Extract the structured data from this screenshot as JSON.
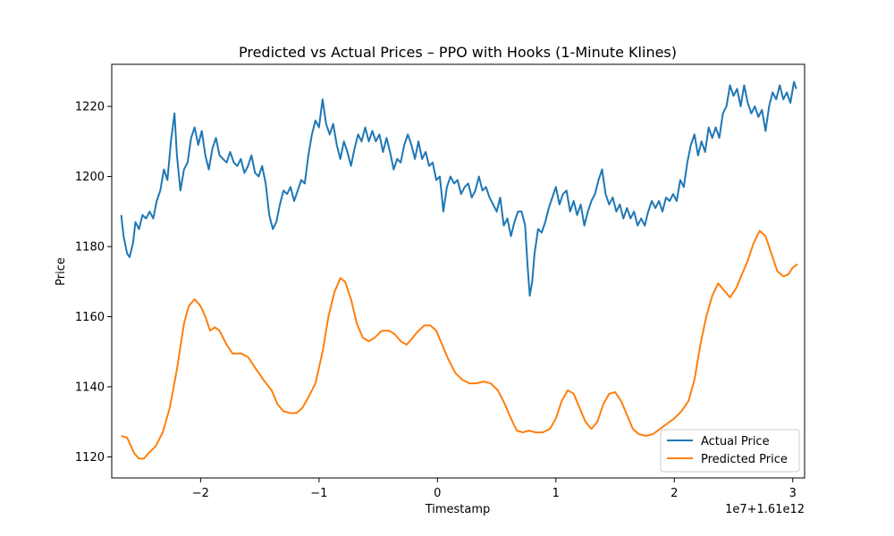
{
  "chart_data": {
    "type": "line",
    "title": "Predicted vs Actual Prices – PPO with Hooks (1-Minute Klines)",
    "xlabel": "Timestamp",
    "ylabel": "Price",
    "x_offset_label": "1e7+1.61e12",
    "xlim": [
      -2.75,
      3.1
    ],
    "ylim": [
      1114,
      1232
    ],
    "x_ticks": [
      {
        "value": -2,
        "label": "−2"
      },
      {
        "value": -1,
        "label": "−1"
      },
      {
        "value": 0,
        "label": "0"
      },
      {
        "value": 1,
        "label": "1"
      },
      {
        "value": 2,
        "label": "2"
      },
      {
        "value": 3,
        "label": "3"
      }
    ],
    "y_ticks": [
      {
        "value": 1120,
        "label": "1120"
      },
      {
        "value": 1140,
        "label": "1140"
      },
      {
        "value": 1160,
        "label": "1160"
      },
      {
        "value": 1180,
        "label": "1180"
      },
      {
        "value": 1200,
        "label": "1200"
      },
      {
        "value": 1220,
        "label": "1220"
      }
    ],
    "grid": false,
    "legend_position": "lower-right",
    "series": [
      {
        "name": "Actual Price",
        "color": "#1f77b4",
        "points": [
          [
            -2.67,
            1189
          ],
          [
            -2.65,
            1183
          ],
          [
            -2.62,
            1178
          ],
          [
            -2.6,
            1177
          ],
          [
            -2.57,
            1181
          ],
          [
            -2.55,
            1187
          ],
          [
            -2.52,
            1185
          ],
          [
            -2.49,
            1189
          ],
          [
            -2.46,
            1188
          ],
          [
            -2.43,
            1190
          ],
          [
            -2.4,
            1188
          ],
          [
            -2.37,
            1193
          ],
          [
            -2.34,
            1196
          ],
          [
            -2.31,
            1202
          ],
          [
            -2.28,
            1199
          ],
          [
            -2.25,
            1210
          ],
          [
            -2.22,
            1218
          ],
          [
            -2.2,
            1206
          ],
          [
            -2.17,
            1196
          ],
          [
            -2.14,
            1202
          ],
          [
            -2.11,
            1204
          ],
          [
            -2.08,
            1211
          ],
          [
            -2.05,
            1214
          ],
          [
            -2.02,
            1209
          ],
          [
            -1.99,
            1213
          ],
          [
            -1.96,
            1206
          ],
          [
            -1.93,
            1202
          ],
          [
            -1.9,
            1208
          ],
          [
            -1.87,
            1211
          ],
          [
            -1.84,
            1206
          ],
          [
            -1.81,
            1205
          ],
          [
            -1.78,
            1204
          ],
          [
            -1.75,
            1207
          ],
          [
            -1.72,
            1204
          ],
          [
            -1.69,
            1203
          ],
          [
            -1.66,
            1205
          ],
          [
            -1.63,
            1201
          ],
          [
            -1.6,
            1203
          ],
          [
            -1.57,
            1206
          ],
          [
            -1.54,
            1201
          ],
          [
            -1.51,
            1200
          ],
          [
            -1.48,
            1203
          ],
          [
            -1.45,
            1198
          ],
          [
            -1.42,
            1189
          ],
          [
            -1.39,
            1185
          ],
          [
            -1.36,
            1187
          ],
          [
            -1.33,
            1192
          ],
          [
            -1.3,
            1196
          ],
          [
            -1.27,
            1195
          ],
          [
            -1.24,
            1197
          ],
          [
            -1.21,
            1193
          ],
          [
            -1.18,
            1196
          ],
          [
            -1.15,
            1199
          ],
          [
            -1.12,
            1198
          ],
          [
            -1.09,
            1206
          ],
          [
            -1.06,
            1212
          ],
          [
            -1.03,
            1216
          ],
          [
            -1.0,
            1214
          ],
          [
            -0.97,
            1222
          ],
          [
            -0.94,
            1215
          ],
          [
            -0.91,
            1212
          ],
          [
            -0.88,
            1215
          ],
          [
            -0.85,
            1209
          ],
          [
            -0.82,
            1205
          ],
          [
            -0.79,
            1210
          ],
          [
            -0.76,
            1207
          ],
          [
            -0.73,
            1203
          ],
          [
            -0.7,
            1208
          ],
          [
            -0.67,
            1212
          ],
          [
            -0.64,
            1210
          ],
          [
            -0.61,
            1214
          ],
          [
            -0.58,
            1210
          ],
          [
            -0.55,
            1213
          ],
          [
            -0.52,
            1210
          ],
          [
            -0.49,
            1212
          ],
          [
            -0.46,
            1207
          ],
          [
            -0.43,
            1211
          ],
          [
            -0.4,
            1207
          ],
          [
            -0.37,
            1202
          ],
          [
            -0.34,
            1205
          ],
          [
            -0.31,
            1204
          ],
          [
            -0.28,
            1209
          ],
          [
            -0.25,
            1212
          ],
          [
            -0.22,
            1209
          ],
          [
            -0.19,
            1205
          ],
          [
            -0.16,
            1210
          ],
          [
            -0.13,
            1205
          ],
          [
            -0.1,
            1207
          ],
          [
            -0.07,
            1203
          ],
          [
            -0.04,
            1204
          ],
          [
            -0.01,
            1199
          ],
          [
            0.02,
            1200
          ],
          [
            0.05,
            1190
          ],
          [
            0.08,
            1197
          ],
          [
            0.11,
            1200
          ],
          [
            0.14,
            1198
          ],
          [
            0.17,
            1199
          ],
          [
            0.2,
            1195
          ],
          [
            0.23,
            1197
          ],
          [
            0.26,
            1198
          ],
          [
            0.29,
            1194
          ],
          [
            0.32,
            1196
          ],
          [
            0.35,
            1200
          ],
          [
            0.38,
            1196
          ],
          [
            0.41,
            1197
          ],
          [
            0.44,
            1194
          ],
          [
            0.47,
            1192
          ],
          [
            0.5,
            1190
          ],
          [
            0.53,
            1194
          ],
          [
            0.56,
            1186
          ],
          [
            0.59,
            1188
          ],
          [
            0.62,
            1183
          ],
          [
            0.65,
            1187
          ],
          [
            0.68,
            1190
          ],
          [
            0.71,
            1190
          ],
          [
            0.74,
            1186
          ],
          [
            0.76,
            1175
          ],
          [
            0.78,
            1166
          ],
          [
            0.8,
            1170
          ],
          [
            0.82,
            1178
          ],
          [
            0.85,
            1185
          ],
          [
            0.88,
            1184
          ],
          [
            0.91,
            1187
          ],
          [
            0.94,
            1191
          ],
          [
            0.97,
            1194
          ],
          [
            1.0,
            1197
          ],
          [
            1.03,
            1192
          ],
          [
            1.06,
            1195
          ],
          [
            1.09,
            1196
          ],
          [
            1.12,
            1190
          ],
          [
            1.15,
            1193
          ],
          [
            1.18,
            1189
          ],
          [
            1.21,
            1192
          ],
          [
            1.24,
            1186
          ],
          [
            1.27,
            1190
          ],
          [
            1.3,
            1193
          ],
          [
            1.33,
            1195
          ],
          [
            1.36,
            1199
          ],
          [
            1.39,
            1202
          ],
          [
            1.42,
            1195
          ],
          [
            1.45,
            1192
          ],
          [
            1.48,
            1194
          ],
          [
            1.51,
            1190
          ],
          [
            1.54,
            1192
          ],
          [
            1.57,
            1188
          ],
          [
            1.6,
            1191
          ],
          [
            1.63,
            1188
          ],
          [
            1.66,
            1190
          ],
          [
            1.69,
            1186
          ],
          [
            1.72,
            1188
          ],
          [
            1.75,
            1186
          ],
          [
            1.78,
            1190
          ],
          [
            1.81,
            1193
          ],
          [
            1.84,
            1191
          ],
          [
            1.87,
            1193
          ],
          [
            1.9,
            1190
          ],
          [
            1.93,
            1194
          ],
          [
            1.96,
            1193
          ],
          [
            1.99,
            1195
          ],
          [
            2.02,
            1193
          ],
          [
            2.05,
            1199
          ],
          [
            2.08,
            1197
          ],
          [
            2.11,
            1204
          ],
          [
            2.14,
            1209
          ],
          [
            2.17,
            1212
          ],
          [
            2.2,
            1206
          ],
          [
            2.23,
            1210
          ],
          [
            2.26,
            1207
          ],
          [
            2.29,
            1214
          ],
          [
            2.32,
            1211
          ],
          [
            2.35,
            1214
          ],
          [
            2.38,
            1211
          ],
          [
            2.41,
            1218
          ],
          [
            2.44,
            1220
          ],
          [
            2.47,
            1226
          ],
          [
            2.5,
            1223
          ],
          [
            2.53,
            1225
          ],
          [
            2.56,
            1220
          ],
          [
            2.59,
            1226
          ],
          [
            2.62,
            1221
          ],
          [
            2.65,
            1218
          ],
          [
            2.68,
            1220
          ],
          [
            2.71,
            1217
          ],
          [
            2.74,
            1219
          ],
          [
            2.77,
            1213
          ],
          [
            2.8,
            1220
          ],
          [
            2.83,
            1224
          ],
          [
            2.86,
            1222
          ],
          [
            2.89,
            1226
          ],
          [
            2.92,
            1222
          ],
          [
            2.95,
            1224
          ],
          [
            2.98,
            1221
          ],
          [
            3.01,
            1227
          ],
          [
            3.03,
            1225
          ]
        ]
      },
      {
        "name": "Predicted Price",
        "color": "#ff7f0e",
        "points": [
          [
            -2.67,
            1126
          ],
          [
            -2.62,
            1125.5
          ],
          [
            -2.56,
            1121
          ],
          [
            -2.52,
            1119.5
          ],
          [
            -2.48,
            1119.5
          ],
          [
            -2.44,
            1121
          ],
          [
            -2.38,
            1123
          ],
          [
            -2.32,
            1127
          ],
          [
            -2.26,
            1134
          ],
          [
            -2.2,
            1145
          ],
          [
            -2.14,
            1158
          ],
          [
            -2.1,
            1163
          ],
          [
            -2.05,
            1165
          ],
          [
            -2.0,
            1163
          ],
          [
            -1.96,
            1160
          ],
          [
            -1.92,
            1156
          ],
          [
            -1.88,
            1157
          ],
          [
            -1.84,
            1156
          ],
          [
            -1.78,
            1152
          ],
          [
            -1.73,
            1149.5
          ],
          [
            -1.66,
            1149.5
          ],
          [
            -1.6,
            1148.5
          ],
          [
            -1.53,
            1145
          ],
          [
            -1.47,
            1142
          ],
          [
            -1.4,
            1139
          ],
          [
            -1.35,
            1135
          ],
          [
            -1.3,
            1133
          ],
          [
            -1.24,
            1132.5
          ],
          [
            -1.19,
            1132.5
          ],
          [
            -1.14,
            1134
          ],
          [
            -1.09,
            1137
          ],
          [
            -1.03,
            1141
          ],
          [
            -0.97,
            1150
          ],
          [
            -0.92,
            1160
          ],
          [
            -0.87,
            1167
          ],
          [
            -0.82,
            1171
          ],
          [
            -0.78,
            1170
          ],
          [
            -0.73,
            1165
          ],
          [
            -0.68,
            1158
          ],
          [
            -0.63,
            1154
          ],
          [
            -0.58,
            1153
          ],
          [
            -0.53,
            1154
          ],
          [
            -0.47,
            1156
          ],
          [
            -0.41,
            1156
          ],
          [
            -0.36,
            1155
          ],
          [
            -0.31,
            1153
          ],
          [
            -0.26,
            1152
          ],
          [
            -0.21,
            1154
          ],
          [
            -0.16,
            1156
          ],
          [
            -0.11,
            1157.5
          ],
          [
            -0.06,
            1157.5
          ],
          [
            -0.01,
            1156
          ],
          [
            0.04,
            1152
          ],
          [
            0.09,
            1148
          ],
          [
            0.15,
            1144
          ],
          [
            0.21,
            1142
          ],
          [
            0.27,
            1141
          ],
          [
            0.33,
            1141
          ],
          [
            0.39,
            1141.5
          ],
          [
            0.45,
            1141
          ],
          [
            0.51,
            1139
          ],
          [
            0.57,
            1135
          ],
          [
            0.62,
            1131
          ],
          [
            0.67,
            1127.5
          ],
          [
            0.72,
            1127
          ],
          [
            0.77,
            1127.5
          ],
          [
            0.83,
            1127
          ],
          [
            0.89,
            1127
          ],
          [
            0.95,
            1128
          ],
          [
            1.0,
            1131
          ],
          [
            1.05,
            1136
          ],
          [
            1.1,
            1139
          ],
          [
            1.15,
            1138
          ],
          [
            1.2,
            1134
          ],
          [
            1.25,
            1130
          ],
          [
            1.3,
            1128
          ],
          [
            1.35,
            1130
          ],
          [
            1.4,
            1135
          ],
          [
            1.45,
            1138
          ],
          [
            1.5,
            1138.5
          ],
          [
            1.55,
            1136
          ],
          [
            1.6,
            1132
          ],
          [
            1.65,
            1128
          ],
          [
            1.7,
            1126.5
          ],
          [
            1.76,
            1126
          ],
          [
            1.82,
            1126.5
          ],
          [
            1.88,
            1128
          ],
          [
            1.94,
            1129.5
          ],
          [
            2.0,
            1131
          ],
          [
            2.06,
            1133
          ],
          [
            2.12,
            1136
          ],
          [
            2.17,
            1142
          ],
          [
            2.22,
            1152
          ],
          [
            2.27,
            1160
          ],
          [
            2.32,
            1166
          ],
          [
            2.37,
            1169.5
          ],
          [
            2.42,
            1167.5
          ],
          [
            2.47,
            1165.5
          ],
          [
            2.52,
            1168
          ],
          [
            2.57,
            1172
          ],
          [
            2.62,
            1176
          ],
          [
            2.67,
            1181
          ],
          [
            2.72,
            1184.5
          ],
          [
            2.77,
            1183
          ],
          [
            2.82,
            1178
          ],
          [
            2.87,
            1173
          ],
          [
            2.92,
            1171.5
          ],
          [
            2.96,
            1172
          ],
          [
            3.0,
            1174
          ],
          [
            3.04,
            1175
          ]
        ]
      }
    ]
  }
}
